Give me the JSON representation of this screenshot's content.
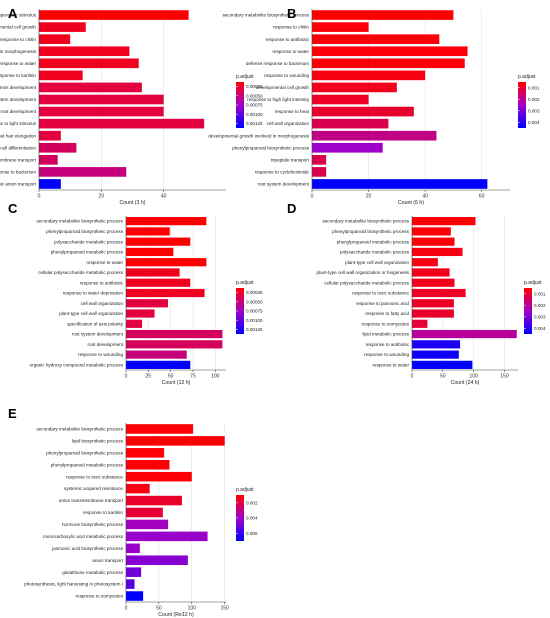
{
  "colors": {
    "low": "#ff0000",
    "mid": "#a000c8",
    "high": "#0000ff",
    "axis": "#444444",
    "grid": "#dddddd"
  },
  "chart_data": [
    {
      "panel": "A",
      "type": "bar",
      "xlabel": "Count (3 h)",
      "xlim": [
        0,
        60
      ],
      "xticks": [
        0,
        20,
        40
      ],
      "legend_title": "p.adjust",
      "legend_ticks": [
        "0.00025",
        "0.00050",
        "0.00075",
        "0.00100",
        "0.00125"
      ],
      "padj_range": [
        0.0001,
        0.0014
      ],
      "categories": [
        "response to temperature stimulus",
        "developmental cell growth",
        "response to chitin",
        "developmental growth involved in morphogenesis",
        "response to water",
        "response to karrikin",
        "plant epidermis development",
        "root system development",
        "root development",
        "response to light stimulus",
        "root hair elongation",
        "plant epidermal cell differentiation",
        "inorganic anion transmembrane transport",
        "response to bacterium",
        "inorganic anion transport"
      ],
      "values": [
        48,
        15,
        10,
        29,
        32,
        14,
        33,
        40,
        40,
        53,
        7,
        12,
        6,
        28,
        7
      ],
      "padj": [
        0.0001,
        0.0002,
        0.0002,
        0.0002,
        0.0002,
        0.0002,
        0.0003,
        0.0003,
        0.0003,
        0.0003,
        0.0003,
        0.0004,
        0.0004,
        0.0005,
        0.0014
      ]
    },
    {
      "panel": "B",
      "type": "bar",
      "xlabel": "Count (6 h)",
      "xlim": [
        0,
        70
      ],
      "xticks": [
        0,
        20,
        40,
        60
      ],
      "legend_title": "p.adjust",
      "legend_ticks": [
        "0.001",
        "0.002",
        "0.003",
        "0.004"
      ],
      "padj_range": [
        0.0001,
        0.0046
      ],
      "categories": [
        "secondary metabolite biosynthetic process",
        "response to chitin",
        "response to antibiotic",
        "response to water",
        "defense response to bacterium",
        "response to wounding",
        "developmental cell growth",
        "response to high light intensity",
        "response to heat",
        "cell wall organization",
        "developmental growth involved in morphogenesis",
        "phenylpropanoid biosynthetic process",
        "tripeptide transport",
        "response to cycloheximide",
        "root system development"
      ],
      "values": [
        50,
        20,
        45,
        55,
        54,
        40,
        30,
        20,
        36,
        27,
        44,
        25,
        5,
        5,
        62
      ],
      "padj": [
        0.0001,
        0.0002,
        0.0002,
        0.0002,
        0.0002,
        0.0003,
        0.0004,
        0.0005,
        0.0006,
        0.001,
        0.0016,
        0.0024,
        0.001,
        0.001,
        0.0046
      ]
    },
    {
      "panel": "C",
      "type": "bar",
      "xlabel": "Count (12 h)",
      "xlim": [
        0,
        112
      ],
      "xticks": [
        0,
        25,
        50,
        75,
        100
      ],
      "legend_title": "p.adjust",
      "legend_ticks": [
        "0.00025",
        "0.00050",
        "0.00075",
        "0.00100",
        "0.00125"
      ],
      "padj_range": [
        0.0001,
        0.0014
      ],
      "categories": [
        "secondary metabolite biosynthetic process",
        "phenylpropanoid biosynthetic process",
        "polysaccharide metabolic process",
        "phenylpropanoid metabolic process",
        "response to water",
        "cellular polysaccharide metabolic process",
        "response to antibiotic",
        "response to water deprivation",
        "cell wall organization",
        "plant-type cell wall organization",
        "specification of axis polarity",
        "root system development",
        "root development",
        "response to wounding",
        "organic hydroxy compound metabolic process"
      ],
      "values": [
        90,
        49,
        72,
        53,
        90,
        60,
        72,
        88,
        47,
        32,
        18,
        108,
        108,
        68,
        72
      ],
      "padj": [
        0.0001,
        0.0001,
        0.0001,
        0.0001,
        0.0001,
        0.0002,
        0.0002,
        0.0002,
        0.0003,
        0.0003,
        0.0003,
        0.0004,
        0.0004,
        0.0005,
        0.0014
      ]
    },
    {
      "panel": "D",
      "type": "bar",
      "xlabel": "Count (24 h)",
      "xlim": [
        0,
        172
      ],
      "xticks": [
        0,
        50,
        100,
        150
      ],
      "legend_title": "p.adjust",
      "legend_ticks": [
        "0.001",
        "0.002",
        "0.003",
        "0.004"
      ],
      "padj_range": [
        0.0001,
        0.0046
      ],
      "categories": [
        "secondary metabolite biosynthetic process",
        "phenylpropanoid biosynthetic process",
        "phenylpropanoid metabolic process",
        "polysaccharide metabolic process",
        "plant-type cell wall organization",
        "plant-type cell wall organization or biogenesis",
        "cellular polysaccharide metabolic process",
        "response to toxic substance",
        "response to jasmonic acid",
        "response to fatty acid",
        "response to oomycetes",
        "lipid metabolic process",
        "response to antibiotic",
        "response to wounding",
        "response to water"
      ],
      "values": [
        103,
        63,
        69,
        82,
        42,
        61,
        69,
        87,
        68,
        68,
        25,
        170,
        78,
        76,
        98
      ],
      "padj": [
        0.0001,
        0.0002,
        0.0002,
        0.0003,
        0.0003,
        0.0004,
        0.0004,
        0.0005,
        0.0005,
        0.0006,
        0.0007,
        0.0018,
        0.0042,
        0.0044,
        0.0046
      ]
    },
    {
      "panel": "E",
      "type": "bar",
      "xlabel": "Count (Re12 h)",
      "xlim": [
        0,
        152
      ],
      "xticks": [
        0,
        50,
        100,
        150
      ],
      "legend_title": "p.adjust",
      "legend_ticks": [
        "0.002",
        "0.004",
        "0.006"
      ],
      "padj_range": [
        0.0001,
        0.0068
      ],
      "categories": [
        "secondary metabolite biosynthetic process",
        "lipid biosynthetic process",
        "phenylpropanoid biosynthetic process",
        "phenylpropanoid metabolic process",
        "response to toxic substance",
        "systemic acquired resistance",
        "anion transmembrane transport",
        "response to karrikin",
        "hormone biosynthetic process",
        "monocarboxylic acid metabolic process",
        "jasmonic acid biosynthetic process",
        "anion transport",
        "glutathione metabolic process",
        "photosynthesis, light harvesting in photosystem I",
        "response to oomycetes"
      ],
      "values": [
        102,
        150,
        58,
        66,
        100,
        36,
        85,
        56,
        64,
        124,
        21,
        94,
        23,
        13,
        26
      ],
      "padj": [
        0.0002,
        0.0002,
        0.0002,
        0.0002,
        0.0002,
        0.0004,
        0.0008,
        0.001,
        0.0033,
        0.0036,
        0.0036,
        0.004,
        0.0045,
        0.005,
        0.0068
      ]
    }
  ]
}
